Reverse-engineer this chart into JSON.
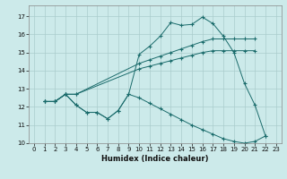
{
  "xlabel": "Humidex (Indice chaleur)",
  "bg_color": "#cceaea",
  "grid_color": "#aacccc",
  "line_color": "#1a6b6b",
  "xlim": [
    -0.5,
    23.5
  ],
  "ylim": [
    10,
    17.6
  ],
  "yticks": [
    10,
    11,
    12,
    13,
    14,
    15,
    16,
    17
  ],
  "xticks": [
    0,
    1,
    2,
    3,
    4,
    5,
    6,
    7,
    8,
    9,
    10,
    11,
    12,
    13,
    14,
    15,
    16,
    17,
    18,
    19,
    20,
    21,
    22,
    23
  ],
  "series": [
    {
      "x": [
        1,
        2,
        3,
        4,
        5,
        6,
        7,
        8,
        9,
        10,
        11,
        12,
        13,
        14,
        15,
        16,
        17,
        18,
        19,
        20,
        21,
        22
      ],
      "y": [
        12.3,
        12.3,
        12.7,
        12.1,
        11.7,
        11.7,
        11.35,
        11.8,
        12.7,
        14.9,
        15.35,
        15.9,
        16.65,
        16.5,
        16.55,
        16.95,
        16.6,
        15.9,
        15.0,
        13.3,
        12.1,
        10.4
      ]
    },
    {
      "x": [
        1,
        2,
        3,
        4,
        10,
        11,
        12,
        13,
        14,
        15,
        16,
        17,
        18,
        19,
        20,
        21
      ],
      "y": [
        12.3,
        12.3,
        12.7,
        12.7,
        14.4,
        14.6,
        14.8,
        15.0,
        15.2,
        15.4,
        15.6,
        15.75,
        15.75,
        15.75,
        15.75,
        15.75
      ]
    },
    {
      "x": [
        1,
        2,
        3,
        4,
        10,
        11,
        12,
        13,
        14,
        15,
        16,
        17,
        18,
        19,
        20,
        21
      ],
      "y": [
        12.3,
        12.3,
        12.7,
        12.7,
        14.1,
        14.25,
        14.4,
        14.55,
        14.7,
        14.85,
        15.0,
        15.1,
        15.1,
        15.1,
        15.1,
        15.1
      ]
    },
    {
      "x": [
        1,
        2,
        3,
        4,
        5,
        6,
        7,
        8,
        9,
        10,
        11,
        12,
        13,
        14,
        15,
        16,
        17,
        18,
        19,
        20,
        21,
        22
      ],
      "y": [
        12.3,
        12.3,
        12.7,
        12.1,
        11.7,
        11.7,
        11.35,
        11.8,
        12.7,
        12.5,
        12.2,
        11.9,
        11.6,
        11.3,
        11.0,
        10.75,
        10.5,
        10.25,
        10.1,
        10.0,
        10.1,
        10.4
      ]
    }
  ]
}
